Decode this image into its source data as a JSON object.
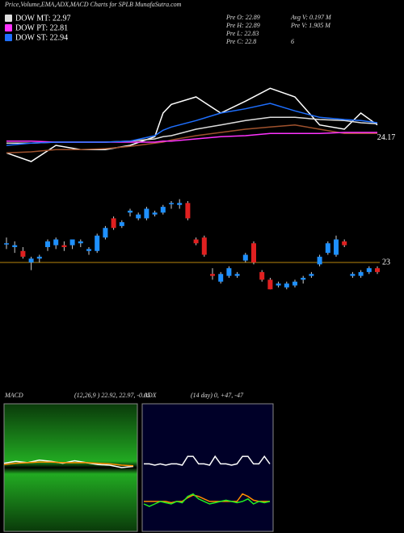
{
  "header": {
    "title": "Price,Volume,EMA,ADX,MACD Charts for SPLB MunafaSutra.com"
  },
  "info": {
    "left": [
      "Pre O: 22.89",
      "Pre H: 22.89",
      "Pre L: 22.83",
      "Pre C: 22.8"
    ],
    "right": [
      "Avg V: 0.197 M",
      "Pre V: 1.905 M",
      "6"
    ]
  },
  "chart_data": [
    {
      "type": "line",
      "xlim": [
        0,
        45
      ],
      "ylim": [
        23.8,
        25.0
      ],
      "yticks": [
        24.17
      ],
      "x": [
        0,
        3,
        6,
        9,
        12,
        15,
        18,
        19,
        20,
        23,
        26,
        29,
        32,
        35,
        38,
        41,
        43,
        45
      ],
      "series": [
        {
          "color": "#ffffff",
          "values": [
            24.03,
            23.95,
            24.1,
            24.06,
            24.06,
            24.1,
            24.18,
            24.4,
            24.48,
            24.55,
            24.4,
            24.51,
            24.63,
            24.55,
            24.29,
            24.25,
            24.4,
            24.29
          ]
        },
        {
          "color": "#a0522d",
          "values": [
            24.03,
            24.04,
            24.06,
            24.06,
            24.07,
            24.09,
            24.12,
            24.13,
            24.15,
            24.19,
            24.22,
            24.25,
            24.27,
            24.29,
            24.25,
            24.21,
            24.21,
            24.21
          ]
        },
        {
          "name": "DOW MT: 22.97",
          "color": "#dddddd",
          "values": [
            24.12,
            24.12,
            24.13,
            24.13,
            24.13,
            24.14,
            24.16,
            24.18,
            24.19,
            24.25,
            24.29,
            24.33,
            24.36,
            24.36,
            24.34,
            24.33,
            24.31,
            24.3
          ]
        },
        {
          "name": "DOW PT: 22.81",
          "color": "#ff33ff",
          "values": [
            24.14,
            24.14,
            24.13,
            24.13,
            24.13,
            24.13,
            24.13,
            24.14,
            24.14,
            24.16,
            24.18,
            24.19,
            24.21,
            24.21,
            24.21,
            24.22,
            24.22,
            24.22
          ]
        },
        {
          "name": "DOW ST: 22.94",
          "color": "#1e6fff",
          "values": [
            24.1,
            24.12,
            24.13,
            24.13,
            24.13,
            24.14,
            24.19,
            24.24,
            24.27,
            24.33,
            24.4,
            24.44,
            24.49,
            24.42,
            24.36,
            24.34,
            24.33,
            24.31
          ]
        }
      ]
    },
    {
      "type": "candlestick",
      "xlim": [
        0,
        45
      ],
      "ylim": [
        22.6,
        23.4
      ],
      "yticks": [
        23
      ],
      "up_color": "#1e90ff",
      "down_color": "#e02020",
      "candles": [
        [
          23.1,
          23.13,
          23.07,
          23.1
        ],
        [
          23.08,
          23.11,
          23.05,
          23.09
        ],
        [
          23.06,
          23.08,
          23.02,
          23.03
        ],
        [
          23.0,
          23.03,
          22.96,
          23.02
        ],
        [
          23.02,
          23.04,
          23.0,
          23.03
        ],
        [
          23.08,
          23.12,
          23.06,
          23.11
        ],
        [
          23.09,
          23.13,
          23.07,
          23.12
        ],
        [
          23.09,
          23.11,
          23.06,
          23.08
        ],
        [
          23.09,
          23.12,
          23.07,
          23.12
        ],
        [
          23.1,
          23.12,
          23.08,
          23.11
        ],
        [
          23.06,
          23.08,
          23.04,
          23.07
        ],
        [
          23.06,
          23.15,
          23.05,
          23.14
        ],
        [
          23.13,
          23.19,
          23.12,
          23.18
        ],
        [
          23.23,
          23.24,
          23.17,
          23.18
        ],
        [
          23.19,
          23.22,
          23.18,
          23.21
        ],
        [
          23.26,
          23.28,
          23.24,
          23.27
        ],
        [
          23.23,
          23.26,
          23.22,
          23.25
        ],
        [
          23.23,
          23.29,
          23.22,
          23.28
        ],
        [
          23.25,
          23.27,
          23.24,
          23.26
        ],
        [
          23.26,
          23.3,
          23.25,
          23.29
        ],
        [
          23.31,
          23.32,
          23.28,
          23.31
        ],
        [
          23.3,
          23.33,
          23.28,
          23.31
        ],
        [
          23.31,
          23.32,
          23.22,
          23.23
        ],
        [
          23.12,
          23.13,
          23.09,
          23.1
        ],
        [
          23.13,
          23.14,
          23.03,
          23.04
        ],
        [
          22.94,
          22.97,
          22.91,
          22.93
        ],
        [
          22.9,
          22.95,
          22.89,
          22.94
        ],
        [
          22.93,
          22.98,
          22.92,
          22.97
        ],
        [
          22.93,
          22.95,
          22.92,
          22.94
        ],
        [
          23.01,
          23.05,
          23.0,
          23.04
        ],
        [
          23.1,
          23.11,
          22.99,
          23.0
        ],
        [
          22.95,
          22.96,
          22.9,
          22.91
        ],
        [
          22.91,
          22.92,
          22.86,
          22.86
        ],
        [
          22.88,
          22.9,
          22.87,
          22.89
        ],
        [
          22.87,
          22.9,
          22.86,
          22.89
        ],
        [
          22.88,
          22.91,
          22.87,
          22.9
        ],
        [
          22.91,
          22.93,
          22.89,
          22.92
        ],
        [
          22.93,
          22.95,
          22.92,
          22.94
        ],
        [
          22.99,
          23.04,
          22.98,
          23.03
        ],
        [
          23.05,
          23.11,
          23.04,
          23.1
        ],
        [
          23.04,
          23.14,
          23.03,
          23.12
        ],
        [
          23.11,
          23.12,
          23.08,
          23.09
        ],
        [
          22.93,
          22.95,
          22.92,
          22.94
        ],
        [
          22.93,
          22.96,
          22.92,
          22.95
        ],
        [
          22.95,
          22.98,
          22.94,
          22.97
        ],
        [
          22.97,
          22.98,
          22.94,
          22.95
        ]
      ]
    },
    {
      "type": "line",
      "title": "MACD",
      "subtitle": "(12,26,9 ) 22.92, 22.97, -0.05",
      "ylim": [
        -1,
        1
      ],
      "series": [
        {
          "color": "#ffffff",
          "values": [
            0.05,
            0.08,
            0.06,
            0.1,
            0.08,
            0.05,
            0.09,
            0.06,
            0.03,
            0.02,
            -0.02,
            0.0
          ]
        },
        {
          "color": "#ff8c00",
          "values": [
            0.03,
            0.05,
            0.06,
            0.07,
            0.07,
            0.06,
            0.06,
            0.06,
            0.05,
            0.04,
            0.02,
            0.01
          ]
        }
      ]
    },
    {
      "type": "line",
      "title": "ADX",
      "subtitle": "(14 day) 0, +47, -47",
      "ylim": [
        0,
        100
      ],
      "series": [
        {
          "color": "#ffffff",
          "values": [
            52,
            52,
            51,
            52,
            51,
            52,
            52,
            51,
            58,
            58,
            52,
            52,
            51,
            58,
            52,
            52,
            51,
            52,
            58,
            58,
            52,
            52,
            58,
            52
          ]
        },
        {
          "color": "#ff8c00",
          "values": [
            22,
            22,
            22,
            22,
            22,
            21,
            22,
            22,
            25,
            27,
            26,
            24,
            22,
            22,
            22,
            22,
            22,
            22,
            28,
            26,
            23,
            22,
            22,
            22
          ]
        },
        {
          "color": "#22ee22",
          "values": [
            20,
            18,
            20,
            22,
            21,
            20,
            22,
            21,
            26,
            28,
            24,
            22,
            20,
            21,
            22,
            23,
            22,
            21,
            22,
            24,
            20,
            22,
            21,
            22
          ]
        }
      ]
    }
  ]
}
